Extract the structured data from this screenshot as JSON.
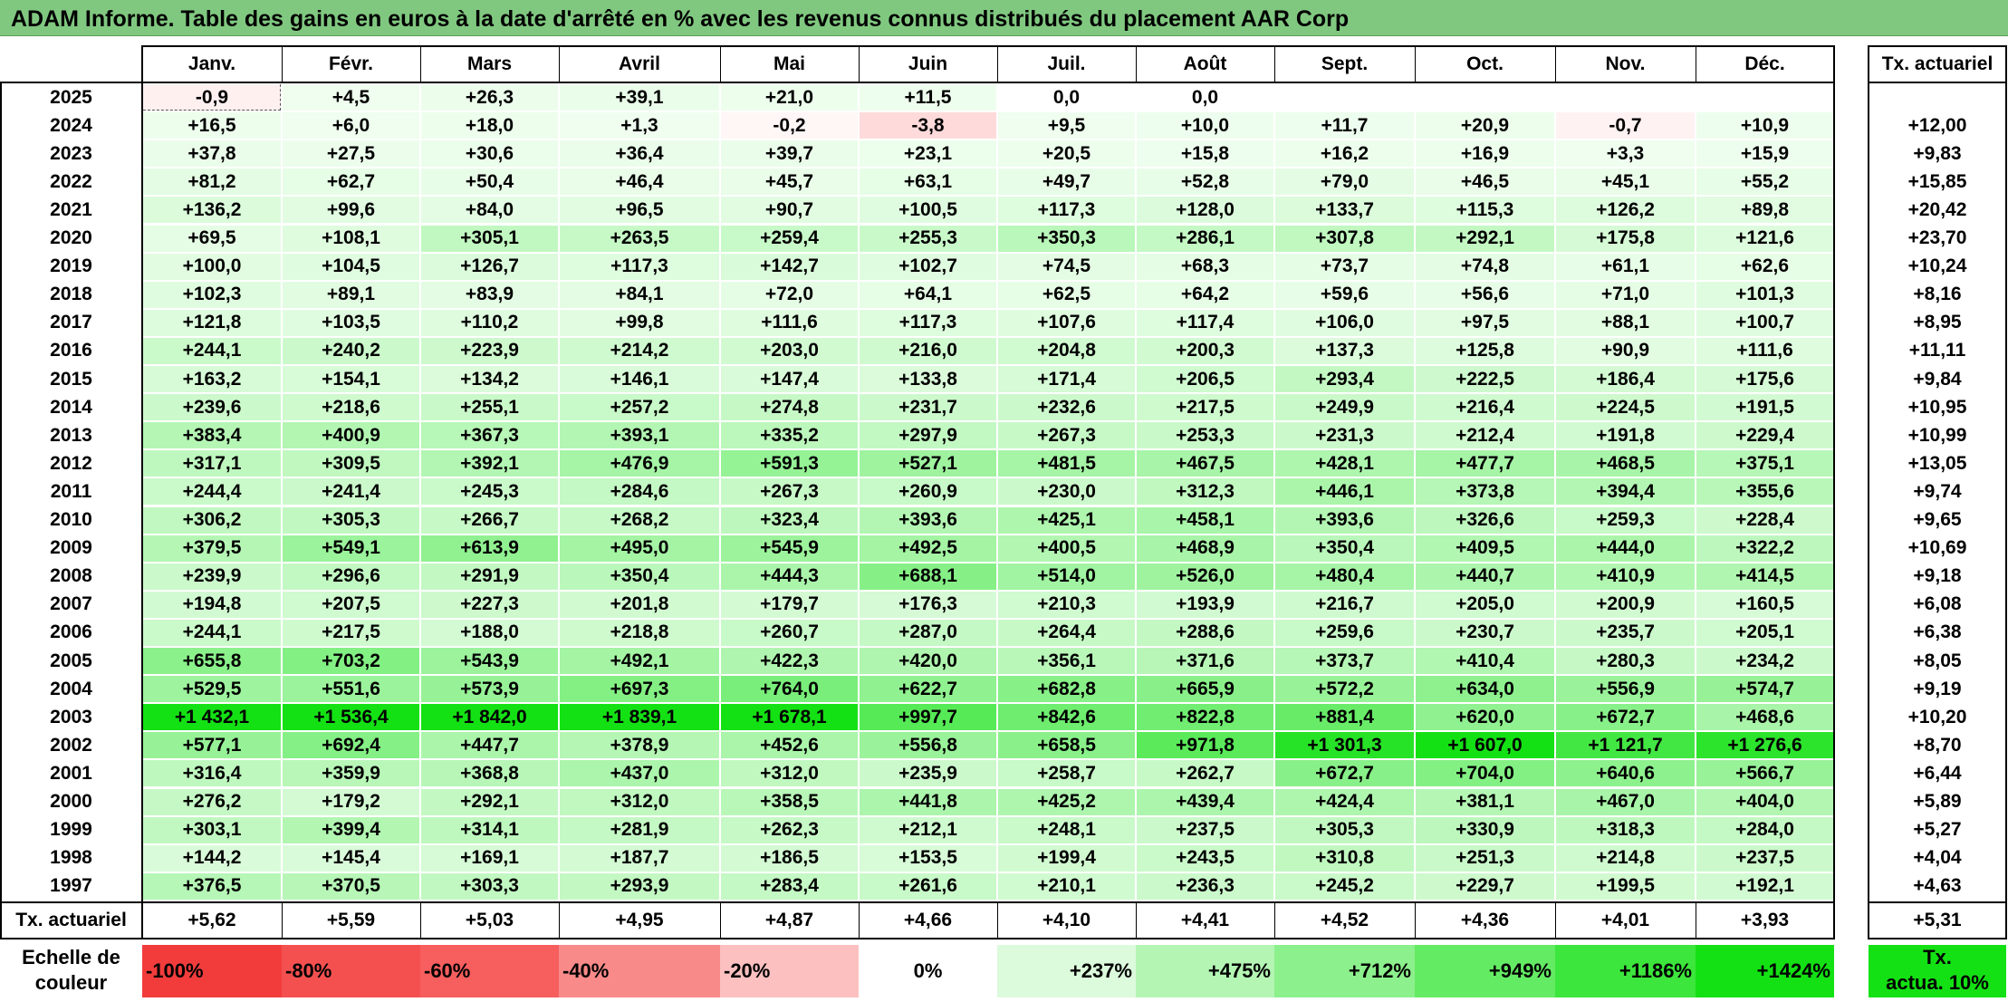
{
  "title": "ADAM Informe. Table des gains en euros à la date d'arrêté en % avec les revenus connus distribués du placement AAR Corp",
  "months": [
    "Janv.",
    "Févr.",
    "Mars",
    "Avril",
    "Mai",
    "Juin",
    "Juil.",
    "Août",
    "Sept.",
    "Oct.",
    "Nov.",
    "Déc."
  ],
  "tx_header": "Tx. actuariel",
  "rows": [
    {
      "year": "2025",
      "vals": [
        "-0,9",
        "+4,5",
        "+26,3",
        "+39,1",
        "+21,0",
        "+11,5",
        "0,0",
        "0,0",
        "",
        "",
        "",
        ""
      ],
      "tx": ""
    },
    {
      "year": "2024",
      "vals": [
        "+16,5",
        "+6,0",
        "+18,0",
        "+1,3",
        "-0,2",
        "-3,8",
        "+9,5",
        "+10,0",
        "+11,7",
        "+20,9",
        "-0,7",
        "+10,9"
      ],
      "tx": "+12,00"
    },
    {
      "year": "2023",
      "vals": [
        "+37,8",
        "+27,5",
        "+30,6",
        "+36,4",
        "+39,7",
        "+23,1",
        "+20,5",
        "+15,8",
        "+16,2",
        "+16,9",
        "+3,3",
        "+15,9"
      ],
      "tx": "+9,83"
    },
    {
      "year": "2022",
      "vals": [
        "+81,2",
        "+62,7",
        "+50,4",
        "+46,4",
        "+45,7",
        "+63,1",
        "+49,7",
        "+52,8",
        "+79,0",
        "+46,5",
        "+45,1",
        "+55,2"
      ],
      "tx": "+15,85"
    },
    {
      "year": "2021",
      "vals": [
        "+136,2",
        "+99,6",
        "+84,0",
        "+96,5",
        "+90,7",
        "+100,5",
        "+117,3",
        "+128,0",
        "+133,7",
        "+115,3",
        "+126,2",
        "+89,8"
      ],
      "tx": "+20,42"
    },
    {
      "year": "2020",
      "vals": [
        "+69,5",
        "+108,1",
        "+305,1",
        "+263,5",
        "+259,4",
        "+255,3",
        "+350,3",
        "+286,1",
        "+307,8",
        "+292,1",
        "+175,8",
        "+121,6"
      ],
      "tx": "+23,70"
    },
    {
      "year": "2019",
      "vals": [
        "+100,0",
        "+104,5",
        "+126,7",
        "+117,3",
        "+142,7",
        "+102,7",
        "+74,5",
        "+68,3",
        "+73,7",
        "+74,8",
        "+61,1",
        "+62,6"
      ],
      "tx": "+10,24"
    },
    {
      "year": "2018",
      "vals": [
        "+102,3",
        "+89,1",
        "+83,9",
        "+84,1",
        "+72,0",
        "+64,1",
        "+62,5",
        "+64,2",
        "+59,6",
        "+56,6",
        "+71,0",
        "+101,3"
      ],
      "tx": "+8,16"
    },
    {
      "year": "2017",
      "vals": [
        "+121,8",
        "+103,5",
        "+110,2",
        "+99,8",
        "+111,6",
        "+117,3",
        "+107,6",
        "+117,4",
        "+106,0",
        "+97,5",
        "+88,1",
        "+100,7"
      ],
      "tx": "+8,95"
    },
    {
      "year": "2016",
      "vals": [
        "+244,1",
        "+240,2",
        "+223,9",
        "+214,2",
        "+203,0",
        "+216,0",
        "+204,8",
        "+200,3",
        "+137,3",
        "+125,8",
        "+90,9",
        "+111,6"
      ],
      "tx": "+11,11"
    },
    {
      "year": "2015",
      "vals": [
        "+163,2",
        "+154,1",
        "+134,2",
        "+146,1",
        "+147,4",
        "+133,8",
        "+171,4",
        "+206,5",
        "+293,4",
        "+222,5",
        "+186,4",
        "+175,6"
      ],
      "tx": "+9,84"
    },
    {
      "year": "2014",
      "vals": [
        "+239,6",
        "+218,6",
        "+255,1",
        "+257,2",
        "+274,8",
        "+231,7",
        "+232,6",
        "+217,5",
        "+249,9",
        "+216,4",
        "+224,5",
        "+191,5"
      ],
      "tx": "+10,95"
    },
    {
      "year": "2013",
      "vals": [
        "+383,4",
        "+400,9",
        "+367,3",
        "+393,1",
        "+335,2",
        "+297,9",
        "+267,3",
        "+253,3",
        "+231,3",
        "+212,4",
        "+191,8",
        "+229,4"
      ],
      "tx": "+10,99"
    },
    {
      "year": "2012",
      "vals": [
        "+317,1",
        "+309,5",
        "+392,1",
        "+476,9",
        "+591,3",
        "+527,1",
        "+481,5",
        "+467,5",
        "+428,1",
        "+477,7",
        "+468,5",
        "+375,1"
      ],
      "tx": "+13,05"
    },
    {
      "year": "2011",
      "vals": [
        "+244,4",
        "+241,4",
        "+245,3",
        "+284,6",
        "+267,3",
        "+260,9",
        "+230,0",
        "+312,3",
        "+446,1",
        "+373,8",
        "+394,4",
        "+355,6"
      ],
      "tx": "+9,74"
    },
    {
      "year": "2010",
      "vals": [
        "+306,2",
        "+305,3",
        "+266,7",
        "+268,2",
        "+323,4",
        "+393,6",
        "+425,1",
        "+458,1",
        "+393,6",
        "+326,6",
        "+259,3",
        "+228,4"
      ],
      "tx": "+9,65"
    },
    {
      "year": "2009",
      "vals": [
        "+379,5",
        "+549,1",
        "+613,9",
        "+495,0",
        "+545,9",
        "+492,5",
        "+400,5",
        "+468,9",
        "+350,4",
        "+409,5",
        "+444,0",
        "+322,2"
      ],
      "tx": "+10,69"
    },
    {
      "year": "2008",
      "vals": [
        "+239,9",
        "+296,6",
        "+291,9",
        "+350,4",
        "+444,3",
        "+688,1",
        "+514,0",
        "+526,0",
        "+480,4",
        "+440,7",
        "+410,9",
        "+414,5"
      ],
      "tx": "+9,18"
    },
    {
      "year": "2007",
      "vals": [
        "+194,8",
        "+207,5",
        "+227,3",
        "+201,8",
        "+179,7",
        "+176,3",
        "+210,3",
        "+193,9",
        "+216,7",
        "+205,0",
        "+200,9",
        "+160,5"
      ],
      "tx": "+6,08"
    },
    {
      "year": "2006",
      "vals": [
        "+244,1",
        "+217,5",
        "+188,0",
        "+218,8",
        "+260,7",
        "+287,0",
        "+264,4",
        "+288,6",
        "+259,6",
        "+230,7",
        "+235,7",
        "+205,1"
      ],
      "tx": "+6,38"
    },
    {
      "year": "2005",
      "vals": [
        "+655,8",
        "+703,2",
        "+543,9",
        "+492,1",
        "+422,3",
        "+420,0",
        "+356,1",
        "+371,6",
        "+373,7",
        "+410,4",
        "+280,3",
        "+234,2"
      ],
      "tx": "+8,05"
    },
    {
      "year": "2004",
      "vals": [
        "+529,5",
        "+551,6",
        "+573,9",
        "+697,3",
        "+764,0",
        "+622,7",
        "+682,8",
        "+665,9",
        "+572,2",
        "+634,0",
        "+556,9",
        "+574,7"
      ],
      "tx": "+9,19"
    },
    {
      "year": "2003",
      "vals": [
        "+1 432,1",
        "+1 536,4",
        "+1 842,0",
        "+1 839,1",
        "+1 678,1",
        "+997,7",
        "+842,6",
        "+822,8",
        "+881,4",
        "+620,0",
        "+672,7",
        "+468,6"
      ],
      "tx": "+10,20"
    },
    {
      "year": "2002",
      "vals": [
        "+577,1",
        "+692,4",
        "+447,7",
        "+378,9",
        "+452,6",
        "+556,8",
        "+658,5",
        "+971,8",
        "+1 301,3",
        "+1 607,0",
        "+1 121,7",
        "+1 276,6"
      ],
      "tx": "+8,70"
    },
    {
      "year": "2001",
      "vals": [
        "+316,4",
        "+359,9",
        "+368,8",
        "+437,0",
        "+312,0",
        "+235,9",
        "+258,7",
        "+262,7",
        "+672,7",
        "+704,0",
        "+640,6",
        "+566,7"
      ],
      "tx": "+6,44"
    },
    {
      "year": "2000",
      "vals": [
        "+276,2",
        "+179,2",
        "+292,1",
        "+312,0",
        "+358,5",
        "+441,8",
        "+425,2",
        "+439,4",
        "+424,4",
        "+381,1",
        "+467,0",
        "+404,0"
      ],
      "tx": "+5,89"
    },
    {
      "year": "1999",
      "vals": [
        "+303,1",
        "+399,4",
        "+314,1",
        "+281,9",
        "+262,3",
        "+212,1",
        "+248,1",
        "+237,5",
        "+305,3",
        "+330,9",
        "+318,3",
        "+284,0"
      ],
      "tx": "+5,27"
    },
    {
      "year": "1998",
      "vals": [
        "+144,2",
        "+145,4",
        "+169,1",
        "+187,7",
        "+186,5",
        "+153,5",
        "+199,4",
        "+243,5",
        "+310,8",
        "+251,3",
        "+214,8",
        "+237,5"
      ],
      "tx": "+4,04"
    },
    {
      "year": "1997",
      "vals": [
        "+376,5",
        "+370,5",
        "+303,3",
        "+293,9",
        "+283,4",
        "+261,6",
        "+210,1",
        "+236,3",
        "+245,2",
        "+229,7",
        "+199,5",
        "+192,1"
      ],
      "tx": "+4,63"
    }
  ],
  "footer": {
    "label": "Tx. actuariel",
    "vals": [
      "+5,62",
      "+5,59",
      "+5,03",
      "+4,95",
      "+4,87",
      "+4,66",
      "+4,10",
      "+4,41",
      "+4,52",
      "+4,36",
      "+4,01",
      "+3,93"
    ],
    "tx": "+5,31"
  },
  "scale": {
    "label_line1": "Echelle de",
    "label_line2": "couleur",
    "items": [
      "-100%",
      "-80%",
      "-60%",
      "-40%",
      "-20%",
      "0%",
      "+237%",
      "+475%",
      "+712%",
      "+949%",
      "+1186%",
      "+1424%"
    ],
    "colors": [
      "#f23c3c",
      "#f55050",
      "#f75e5e",
      "#f98a8a",
      "#fcc0c0",
      "#ffffff",
      "#dcfadc",
      "#b4f5b4",
      "#8cf08c",
      "#64eb64",
      "#3ce63c",
      "#14e114"
    ],
    "tx_line1": "Tx.",
    "tx_line2": "actua. 10%",
    "tx_color": "#14e114"
  },
  "colors": {
    "title_bg": "#80c880",
    "max_green_value": 1424
  }
}
